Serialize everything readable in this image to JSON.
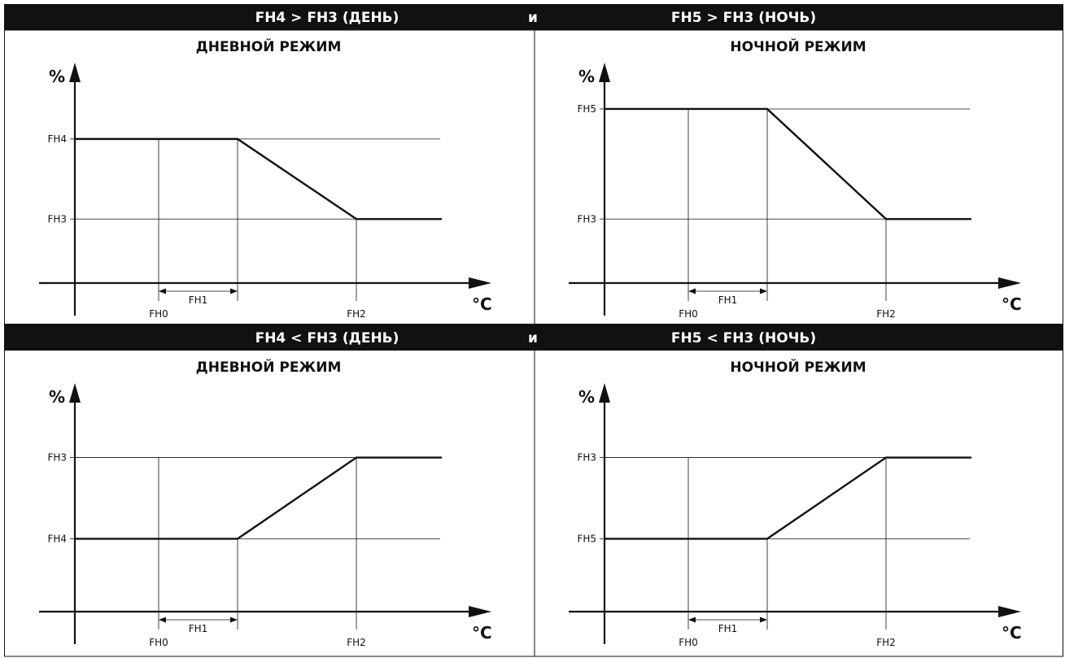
{
  "rows": [
    {
      "left_header": "FH4 > FH3 (ДЕНЬ)",
      "connector": "и",
      "right_header": "FH5 > FH3 (НОЧЬ)"
    },
    {
      "left_header": "FH4 < FH3 (ДЕНЬ)",
      "connector": "и",
      "right_header": "FH5 < FH3 (НОЧЬ)"
    }
  ],
  "chart_data": [
    {
      "type": "line",
      "title": "ДНЕВНОЙ РЕЖИМ",
      "ylabel": "%",
      "xlabel": "°C",
      "x_ticks": [
        "FH0",
        "FH2"
      ],
      "dimension_label": "FH1",
      "y_ticks": [
        {
          "label": "FH4",
          "level": 0.72
        },
        {
          "label": "FH3",
          "level": 0.32
        }
      ],
      "points": [
        [
          0,
          0.72
        ],
        [
          2,
          0.72
        ],
        [
          5,
          0.32
        ],
        [
          7.2,
          0.32
        ]
      ]
    },
    {
      "type": "line",
      "title": "НОЧНОЙ РЕЖИМ",
      "ylabel": "%",
      "xlabel": "°C",
      "x_ticks": [
        "FH0",
        "FH2"
      ],
      "dimension_label": "FH1",
      "y_ticks": [
        {
          "label": "FH5",
          "level": 0.87
        },
        {
          "label": "FH3",
          "level": 0.32
        }
      ],
      "points": [
        [
          0,
          0.87
        ],
        [
          2,
          0.87
        ],
        [
          5,
          0.32
        ],
        [
          7.2,
          0.32
        ]
      ]
    },
    {
      "type": "line",
      "title": "ДНЕВНОЙ РЕЖИМ",
      "ylabel": "%",
      "xlabel": "°C",
      "x_ticks": [
        "FH0",
        "FH2"
      ],
      "dimension_label": "FH1",
      "y_ticks": [
        {
          "label": "FH3",
          "level": 0.74
        },
        {
          "label": "FH4",
          "level": 0.35
        }
      ],
      "points": [
        [
          0,
          0.35
        ],
        [
          2,
          0.35
        ],
        [
          5,
          0.74
        ],
        [
          7.2,
          0.74
        ]
      ]
    },
    {
      "type": "line",
      "title": "НОЧНОЙ РЕЖИМ",
      "ylabel": "%",
      "xlabel": "°C",
      "x_ticks": [
        "FH0",
        "FH2"
      ],
      "dimension_label": "FH1",
      "y_ticks": [
        {
          "label": "FH3",
          "level": 0.74
        },
        {
          "label": "FH5",
          "level": 0.35
        }
      ],
      "points": [
        [
          0,
          0.35
        ],
        [
          2,
          0.35
        ],
        [
          5,
          0.74
        ],
        [
          7.2,
          0.74
        ]
      ]
    }
  ]
}
